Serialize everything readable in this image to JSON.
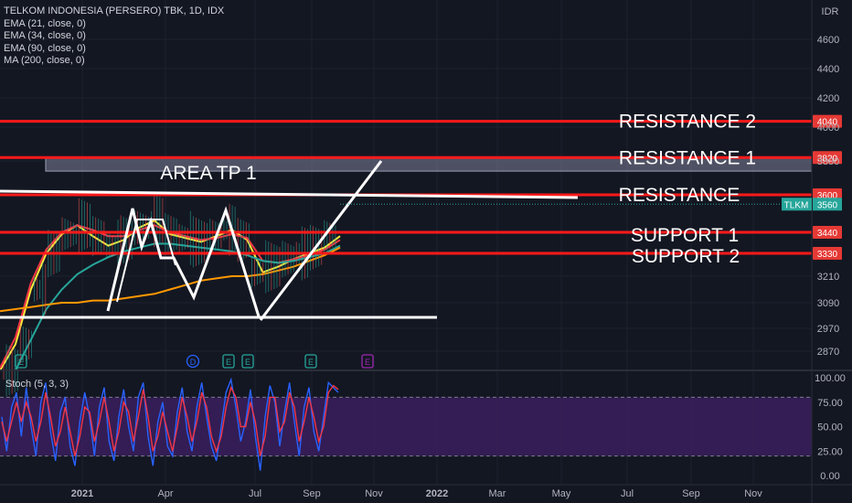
{
  "legend": {
    "symbol": "TELKOM INDONESIA (PERSERO) TBK, 1D, IDX",
    "indicators": [
      "EMA (21, close, 0)",
      "EMA (34, close, 0)",
      "EMA (90, close, 0)",
      "MA (200, close, 0)"
    ]
  },
  "stoch_label": "Stoch (5, 3, 3)",
  "colors": {
    "background": "#131722",
    "grid": "#1e222d",
    "resistance_line": "#ff1a1a",
    "drawing": "#ffffff",
    "ema21": "#ffeb3b",
    "ema34": "#f23645",
    "ema90": "#26a69a",
    "ma200": "#ff9800",
    "stoch_k": "#2962ff",
    "stoch_d": "#f23645",
    "stoch_band": "#3a1f5d",
    "ticker_badge": "#26a69a"
  },
  "chart_data": [
    {
      "type": "line",
      "title": "TELKOM INDONESIA (PERSERO) TBK, 1D, IDX",
      "currency": "IDR",
      "x_ticks": [
        "2021",
        "Apr",
        "Jul",
        "Sep",
        "Nov",
        "2022",
        "Mar",
        "May",
        "Jul",
        "Sep",
        "Nov"
      ],
      "y_ticks": [
        4600,
        4400,
        4200,
        4000,
        3800,
        3600,
        3440,
        3210,
        3090,
        2970,
        2870
      ],
      "ylim": [
        2790,
        4700
      ],
      "last_price": {
        "ticker": "TLKM",
        "value": 3560
      },
      "levels": [
        {
          "label": "RESISTANCE 2",
          "value": 4040
        },
        {
          "label": "RESISTANCE 1",
          "value": 3820
        },
        {
          "label": "RESISTANCE",
          "value": 3600
        },
        {
          "label": "SUPPORT 1",
          "value": 3440
        },
        {
          "label": "SUPPORT 2",
          "value": 3330
        }
      ],
      "zone": {
        "label": "AREA TP 1",
        "from": 3740,
        "to": 3820
      },
      "event_markers": [
        "E",
        "D",
        "E",
        "E",
        "E"
      ],
      "series": [
        {
          "name": "EMA (21, close, 0)",
          "values": [
            2780,
            2900,
            3150,
            3330,
            3430,
            3470,
            3420,
            3370,
            3400,
            3460,
            3490,
            3430,
            3410,
            3390,
            3420,
            3450,
            3400,
            3230,
            3260,
            3300,
            3330,
            3360,
            3420
          ]
        },
        {
          "name": "EMA (34, close, 0)",
          "values": [
            2800,
            2930,
            3180,
            3350,
            3440,
            3470,
            3450,
            3420,
            3420,
            3450,
            3470,
            3440,
            3420,
            3400,
            3410,
            3430,
            3410,
            3290,
            3280,
            3300,
            3320,
            3350,
            3400
          ]
        },
        {
          "name": "EMA (90, close, 0)",
          "values": [
            2760,
            2790,
            2920,
            3060,
            3150,
            3220,
            3270,
            3310,
            3340,
            3360,
            3380,
            3380,
            3370,
            3360,
            3350,
            3340,
            3320,
            3290,
            3280,
            3290,
            3310,
            3330,
            3370
          ]
        },
        {
          "name": "MA (200, close, 0)",
          "values": [
            3050,
            3060,
            3070,
            3080,
            3090,
            3090,
            3100,
            3100,
            3110,
            3120,
            3130,
            3150,
            3170,
            3190,
            3200,
            3210,
            3210,
            3220,
            3240,
            3260,
            3290,
            3320,
            3360
          ]
        }
      ]
    },
    {
      "type": "line",
      "title": "Stoch (5, 3, 3)",
      "y_ticks": [
        100.0,
        75.0,
        50.0,
        25.0,
        0.0
      ],
      "ylim": [
        0,
        100
      ],
      "bands": [
        20,
        80
      ],
      "series": [
        {
          "name": "%K",
          "values": [
            60,
            25,
            70,
            85,
            40,
            90,
            50,
            20,
            75,
            95,
            45,
            15,
            65,
            80,
            30,
            10,
            55,
            85,
            60,
            20,
            70,
            90,
            35,
            15,
            60,
            88,
            50,
            25,
            80,
            95,
            40,
            10,
            55,
            75,
            30,
            20,
            65,
            90,
            45,
            25,
            70,
            95,
            60,
            30,
            15,
            50,
            85,
            98,
            70,
            35,
            55,
            88,
            40,
            5,
            60,
            92,
            75,
            30,
            65,
            95,
            55,
            20,
            70,
            90,
            45,
            25,
            60,
            95,
            90,
            85
          ]
        },
        {
          "name": "%D",
          "values": [
            55,
            35,
            55,
            75,
            55,
            75,
            60,
            35,
            55,
            85,
            60,
            30,
            45,
            70,
            45,
            20,
            40,
            70,
            65,
            35,
            55,
            80,
            55,
            25,
            45,
            75,
            65,
            35,
            60,
            88,
            60,
            25,
            40,
            65,
            45,
            25,
            50,
            80,
            60,
            35,
            55,
            85,
            70,
            40,
            25,
            40,
            70,
            90,
            80,
            50,
            50,
            75,
            55,
            20,
            40,
            80,
            80,
            45,
            55,
            85,
            70,
            35,
            55,
            80,
            60,
            35,
            50,
            85,
            92,
            88
          ]
        }
      ]
    }
  ]
}
